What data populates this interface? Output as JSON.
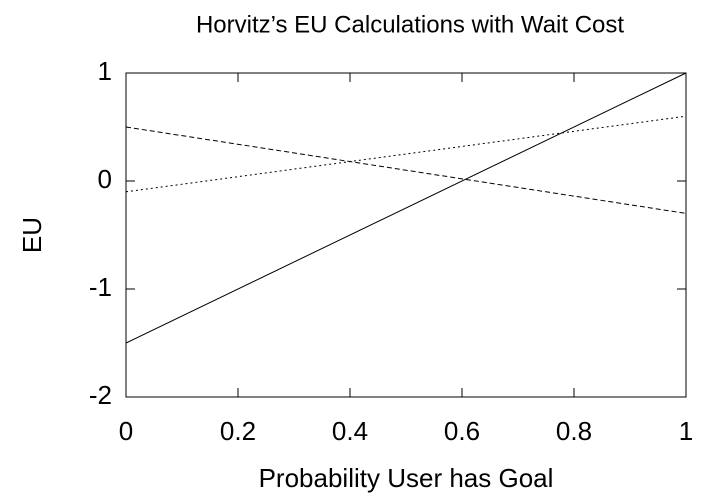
{
  "chart_data": {
    "type": "line",
    "title": "Horvitz’s EU Calculations with Wait Cost",
    "x_label": "Probability User has Goal",
    "y_label": "EU",
    "x": [
      0,
      1
    ],
    "series": [
      {
        "color": "#000000",
        "style": "solid",
        "values": [
          -1.5,
          1
        ]
      },
      {
        "color": "#000000",
        "style": "dashed",
        "values": [
          0.5,
          -0.3
        ]
      },
      {
        "color": "#000000",
        "style": "dotted",
        "values": [
          -0.1,
          0.6
        ]
      }
    ],
    "xlim": [
      0,
      1
    ],
    "xticks": [
      0,
      0.2,
      0.4,
      0.6,
      0.8,
      1
    ],
    "ylim": [
      -2,
      1
    ],
    "yticks": [
      -2,
      -1,
      0,
      1
    ],
    "grid": false
  }
}
